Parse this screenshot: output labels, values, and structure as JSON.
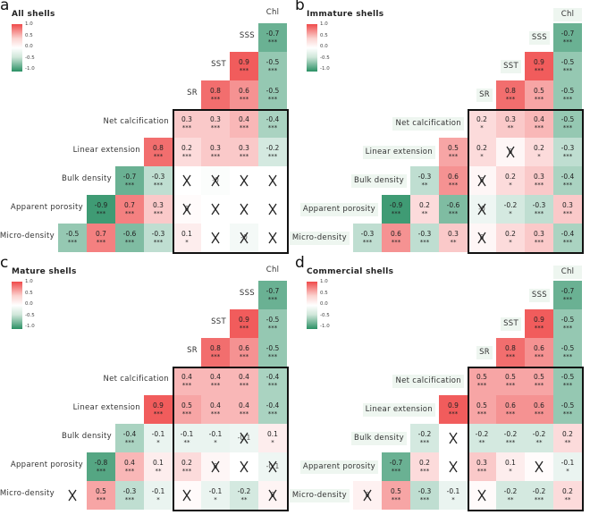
{
  "chart_data": [
    {
      "type": "heatmap",
      "letter": "a",
      "title": "All shells",
      "legend": {
        "ticks": [
          "1.0",
          "0.5",
          "0.0",
          "-0.5",
          "-1.0"
        ],
        "range": [
          -1,
          1
        ]
      },
      "columns": [
        "Apparent porosity",
        "Bulk density",
        "Linear extension",
        "Net calcification",
        "SR",
        "SST",
        "SSS",
        "Chl"
      ],
      "rows": [
        "SSS",
        "SST",
        "SR",
        "Net calcification",
        "Linear extension",
        "Bulk density",
        "Apparent porosity",
        "Micro-density"
      ],
      "cells": [
        [
          {
            "v": -0.7,
            "s": "***"
          }
        ],
        [
          {
            "v": 0.9,
            "s": "***"
          },
          {
            "v": -0.5,
            "s": "***"
          }
        ],
        [
          {
            "v": 0.8,
            "s": "***"
          },
          {
            "v": 0.6,
            "s": "***"
          },
          {
            "v": -0.5,
            "s": "***"
          }
        ],
        [
          {
            "v": 0.3,
            "s": "***"
          },
          {
            "v": 0.3,
            "s": "***"
          },
          {
            "v": 0.4,
            "s": "***"
          },
          {
            "v": -0.4,
            "s": "***"
          }
        ],
        [
          {
            "v": 0.8,
            "s": "***"
          },
          {
            "v": 0.2,
            "s": "***"
          },
          {
            "v": 0.3,
            "s": "***"
          },
          {
            "v": 0.3,
            "s": "***"
          },
          {
            "v": -0.2,
            "s": "***"
          }
        ],
        [
          {
            "v": -0.7,
            "s": "***"
          },
          {
            "v": -0.3,
            "s": "***"
          },
          {
            "v": 0,
            "x": true,
            "t": ""
          },
          {
            "v": -0.02,
            "x": true,
            "t": "-0"
          },
          {
            "v": 0,
            "x": true,
            "t": ""
          },
          {
            "v": 0,
            "x": true,
            "t": ""
          }
        ],
        [
          {
            "v": -0.9,
            "s": "***"
          },
          {
            "v": 0.7,
            "s": "***"
          },
          {
            "v": 0.3,
            "s": "***"
          },
          {
            "v": 0.02,
            "x": true,
            "t": "0"
          },
          {
            "v": 0,
            "x": true,
            "t": ""
          },
          {
            "v": 0,
            "x": true,
            "t": ""
          },
          {
            "v": 0,
            "x": true,
            "t": ""
          }
        ],
        [
          {
            "v": -0.5,
            "s": "***"
          },
          {
            "v": 0.7,
            "s": "***"
          },
          {
            "v": -0.6,
            "s": "***"
          },
          {
            "v": -0.3,
            "s": "***"
          },
          {
            "v": 0.1,
            "s": "*"
          },
          {
            "v": 0,
            "x": true,
            "t": ""
          },
          {
            "v": -0.05,
            "x": true,
            "t": "-0"
          },
          {
            "v": 0,
            "x": true,
            "t": ""
          }
        ]
      ]
    },
    {
      "type": "heatmap",
      "letter": "b",
      "title": "Immature shells",
      "legend": {
        "ticks": [
          "1.0",
          "0.5",
          "0.0",
          "-0.5",
          "-1.0"
        ],
        "range": [
          -1,
          1
        ]
      },
      "columns": [
        "Apparent porosity",
        "Bulk density",
        "Linear extension",
        "Net calcification",
        "SR",
        "SST",
        "SSS",
        "Chl"
      ],
      "rows": [
        "SSS",
        "SST",
        "SR",
        "Net calcification",
        "Linear extension",
        "Bulk density",
        "Apparent porosity",
        "Micro-density"
      ],
      "cells": [
        [
          {
            "v": -0.7,
            "s": "***"
          }
        ],
        [
          {
            "v": 0.9,
            "s": "***"
          },
          {
            "v": -0.5,
            "s": "***"
          }
        ],
        [
          {
            "v": 0.8,
            "s": "***"
          },
          {
            "v": 0.5,
            "s": "***"
          },
          {
            "v": -0.5,
            "s": "***"
          }
        ],
        [
          {
            "v": 0.2,
            "s": "*"
          },
          {
            "v": 0.3,
            "s": "**"
          },
          {
            "v": 0.4,
            "s": "***"
          },
          {
            "v": -0.5,
            "s": "***"
          }
        ],
        [
          {
            "v": 0.5,
            "s": "***"
          },
          {
            "v": 0.2,
            "s": "*"
          },
          {
            "v": 0.05,
            "x": true,
            "t": "0"
          },
          {
            "v": 0.2,
            "s": "*"
          },
          {
            "v": -0.3,
            "s": "***"
          }
        ],
        [
          {
            "v": -0.3,
            "s": "**"
          },
          {
            "v": 0.6,
            "s": "***"
          },
          {
            "v": 0.05,
            "x": true,
            "t": "0"
          },
          {
            "v": 0.2,
            "s": "*"
          },
          {
            "v": 0.3,
            "s": "***"
          },
          {
            "v": -0.4,
            "s": "***"
          }
        ],
        [
          {
            "v": -0.9,
            "s": "***"
          },
          {
            "v": 0.2,
            "s": "**"
          },
          {
            "v": -0.6,
            "s": "***"
          },
          {
            "v": -0.08,
            "x": true,
            "t": "-0"
          },
          {
            "v": -0.2,
            "s": "*"
          },
          {
            "v": -0.3,
            "s": "***"
          },
          {
            "v": 0.3,
            "s": "***"
          }
        ],
        [
          {
            "v": -0.3,
            "s": "***"
          },
          {
            "v": 0.6,
            "s": "***"
          },
          {
            "v": -0.3,
            "s": "***"
          },
          {
            "v": 0.3,
            "s": "**"
          },
          {
            "v": 0.05,
            "x": true,
            "t": "0"
          },
          {
            "v": 0.2,
            "s": "*"
          },
          {
            "v": 0.3,
            "s": "***"
          },
          {
            "v": -0.4,
            "s": "***"
          }
        ]
      ]
    },
    {
      "type": "heatmap",
      "letter": "c",
      "title": "Mature shells",
      "legend": {
        "ticks": [
          "1.0",
          "0.5",
          "0.0",
          "-0.5",
          "-1.0"
        ],
        "range": [
          -1,
          1
        ]
      },
      "columns": [
        "Apparent porosity",
        "Bulk density",
        "Linear extension",
        "Net calcification",
        "SR",
        "SST",
        "SSS",
        "Chl"
      ],
      "rows": [
        "SSS",
        "SST",
        "SR",
        "Net calcification",
        "Linear extension",
        "Bulk density",
        "Apparent porosity",
        "Micro-density"
      ],
      "cells": [
        [
          {
            "v": -0.7,
            "s": "***"
          }
        ],
        [
          {
            "v": 0.9,
            "s": "***"
          },
          {
            "v": -0.5,
            "s": "***"
          }
        ],
        [
          {
            "v": 0.8,
            "s": "***"
          },
          {
            "v": 0.6,
            "s": "***"
          },
          {
            "v": -0.5,
            "s": "***"
          }
        ],
        [
          {
            "v": 0.4,
            "s": "***"
          },
          {
            "v": 0.4,
            "s": "***"
          },
          {
            "v": 0.4,
            "s": "***"
          },
          {
            "v": -0.4,
            "s": "***"
          }
        ],
        [
          {
            "v": 0.9,
            "s": "***"
          },
          {
            "v": 0.5,
            "s": "***"
          },
          {
            "v": 0.4,
            "s": "***"
          },
          {
            "v": 0.4,
            "s": "***"
          },
          {
            "v": -0.4,
            "s": "***"
          }
        ],
        [
          {
            "v": -0.4,
            "s": "***"
          },
          {
            "v": -0.1,
            "s": "*"
          },
          {
            "v": -0.1,
            "s": "**"
          },
          {
            "v": -0.1,
            "s": "*"
          },
          {
            "v": -0.08,
            "x": true,
            "t": "-0.1"
          },
          {
            "v": 0.1,
            "s": "*"
          }
        ],
        [
          {
            "v": -0.8,
            "s": "***"
          },
          {
            "v": 0.4,
            "s": "***"
          },
          {
            "v": 0.1,
            "s": "**"
          },
          {
            "v": 0.2,
            "s": "***"
          },
          {
            "v": 0.05,
            "x": true,
            "t": "0"
          },
          {
            "v": 0,
            "x": true,
            "t": ""
          },
          {
            "v": -0.08,
            "x": true,
            "t": "-0.1"
          }
        ],
        [
          {
            "v": 0,
            "x": true,
            "t": ""
          },
          {
            "v": 0.5,
            "s": "***"
          },
          {
            "v": -0.3,
            "s": "***"
          },
          {
            "v": -0.1,
            "s": "*"
          },
          {
            "v": 0.03,
            "x": true,
            "t": ""
          },
          {
            "v": -0.1,
            "s": "*"
          },
          {
            "v": -0.2,
            "s": "**"
          },
          {
            "v": 0.06,
            "x": true,
            "t": "0"
          }
        ]
      ]
    },
    {
      "type": "heatmap",
      "letter": "d",
      "title": "Commercial shells",
      "legend": {
        "ticks": [
          "1.0",
          "0.5",
          "0.0",
          "-0.5",
          "-1.0"
        ],
        "range": [
          -1,
          1
        ]
      },
      "columns": [
        "Apparent porosity",
        "Bulk density",
        "Linear extension",
        "Net calcification",
        "SR",
        "SST",
        "SSS",
        "Chl"
      ],
      "rows": [
        "SSS",
        "SST",
        "SR",
        "Net calcification",
        "Linear extension",
        "Bulk density",
        "Apparent porosity",
        "Micro-density"
      ],
      "cells": [
        [
          {
            "v": -0.7,
            "s": "***"
          }
        ],
        [
          {
            "v": 0.9,
            "s": "***"
          },
          {
            "v": -0.5,
            "s": "***"
          }
        ],
        [
          {
            "v": 0.8,
            "s": "***"
          },
          {
            "v": 0.6,
            "s": "***"
          },
          {
            "v": -0.5,
            "s": "***"
          }
        ],
        [
          {
            "v": 0.5,
            "s": "***"
          },
          {
            "v": 0.5,
            "s": "***"
          },
          {
            "v": 0.5,
            "s": "***"
          },
          {
            "v": -0.5,
            "s": "***"
          }
        ],
        [
          {
            "v": 0.9,
            "s": "***"
          },
          {
            "v": 0.5,
            "s": "***"
          },
          {
            "v": 0.6,
            "s": "***"
          },
          {
            "v": 0.6,
            "s": "***"
          },
          {
            "v": -0.5,
            "s": "***"
          }
        ],
        [
          {
            "v": -0.2,
            "s": "***"
          },
          {
            "v": 0,
            "x": true,
            "t": ""
          },
          {
            "v": -0.2,
            "s": "**"
          },
          {
            "v": -0.2,
            "s": "***"
          },
          {
            "v": -0.2,
            "s": "**"
          },
          {
            "v": 0.2,
            "s": "**"
          }
        ],
        [
          {
            "v": -0.7,
            "s": "***"
          },
          {
            "v": 0.2,
            "s": "***"
          },
          {
            "v": 0,
            "x": true,
            "t": ""
          },
          {
            "v": 0.3,
            "s": "***"
          },
          {
            "v": 0.1,
            "s": "*"
          },
          {
            "v": 0.02,
            "x": true,
            "t": ""
          },
          {
            "v": -0.1,
            "s": "*"
          }
        ],
        [
          {
            "v": 0.08,
            "x": true,
            "t": "0"
          },
          {
            "v": 0.5,
            "s": "***"
          },
          {
            "v": -0.3,
            "s": "***"
          },
          {
            "v": -0.1,
            "s": "*"
          },
          {
            "v": 0.03,
            "x": true,
            "t": ""
          },
          {
            "v": -0.2,
            "s": "**"
          },
          {
            "v": -0.2,
            "s": "***"
          },
          {
            "v": 0.2,
            "s": "**"
          }
        ]
      ]
    }
  ],
  "colors": {
    "positive": "#ef4a4a",
    "zero": "#ffffff",
    "negative": "#2a9064"
  },
  "icons": {
    "crossed": "✕ insignificant-cross-icon"
  }
}
